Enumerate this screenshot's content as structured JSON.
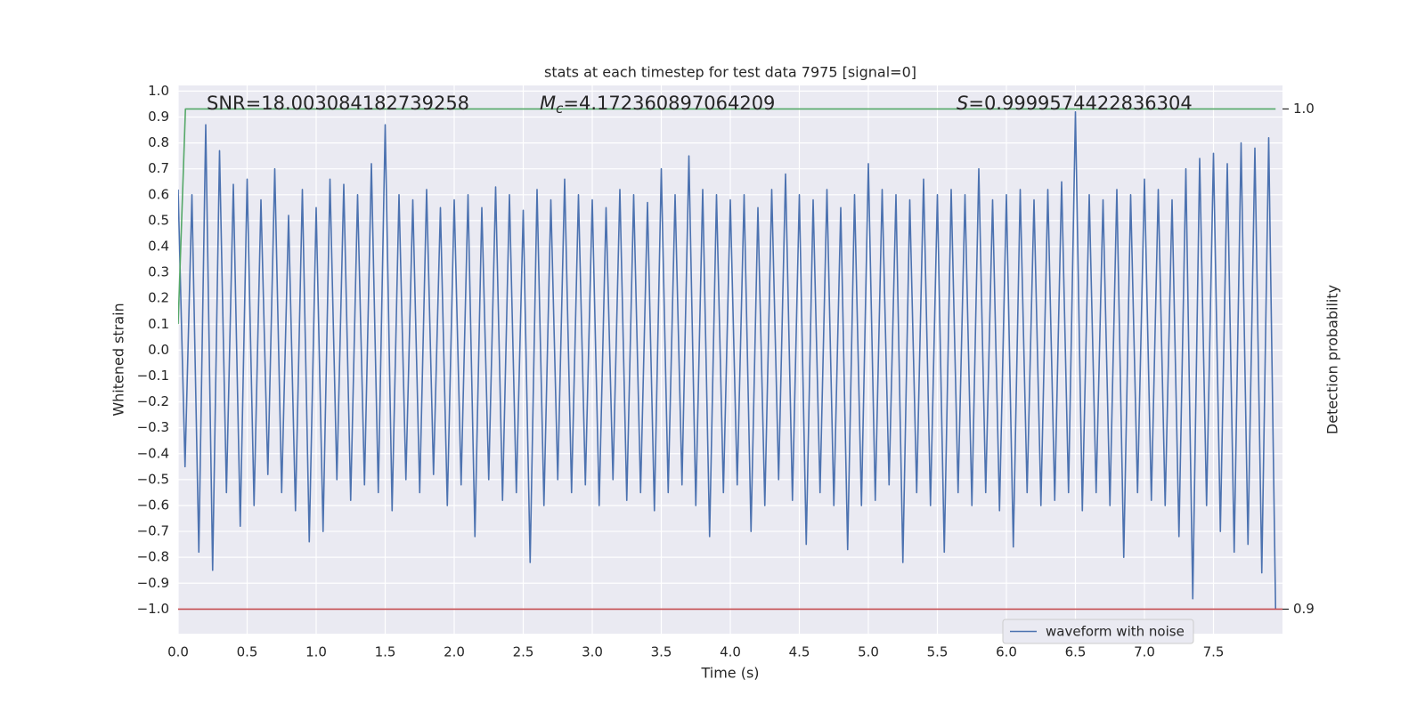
{
  "chart_data": {
    "type": "line",
    "title": "stats at each timestep for test data 7975 [signal=0]",
    "xlabel": "Time (s)",
    "ylabel": "Whitened strain",
    "y2label": "Detection probability",
    "annotations": [
      {
        "text": "SNR=18.003084182739258"
      },
      {
        "symbol": "M",
        "subscript": "c",
        "text": "=4.172360897064209"
      },
      {
        "symbol": "S",
        "text": "=0.9999574422836304"
      }
    ],
    "xlim": [
      0,
      8.0
    ],
    "ylim": [
      -1.095,
      1.022
    ],
    "y2lim": [
      0.8951,
      1.0047
    ],
    "xticks": [
      {
        "value": 0,
        "label": "0.0"
      },
      {
        "value": 0.5,
        "label": "0.5"
      },
      {
        "value": 1,
        "label": "1.0"
      },
      {
        "value": 1.5,
        "label": "1.5"
      },
      {
        "value": 2,
        "label": "2.0"
      },
      {
        "value": 2.5,
        "label": "2.5"
      },
      {
        "value": 3,
        "label": "3.0"
      },
      {
        "value": 3.5,
        "label": "3.5"
      },
      {
        "value": 4,
        "label": "4.0"
      },
      {
        "value": 4.5,
        "label": "4.5"
      },
      {
        "value": 5,
        "label": "5.0"
      },
      {
        "value": 5.5,
        "label": "5.5"
      },
      {
        "value": 6,
        "label": "6.0"
      },
      {
        "value": 6.5,
        "label": "6.5"
      },
      {
        "value": 7,
        "label": "7.0"
      },
      {
        "value": 7.5,
        "label": "7.5"
      }
    ],
    "yticks": [
      {
        "value": -1,
        "label": "−1.0"
      },
      {
        "value": -0.9,
        "label": "−0.9"
      },
      {
        "value": -0.8,
        "label": "−0.8"
      },
      {
        "value": -0.7,
        "label": "−0.7"
      },
      {
        "value": -0.6,
        "label": "−0.6"
      },
      {
        "value": -0.5,
        "label": "−0.5"
      },
      {
        "value": -0.4,
        "label": "−0.4"
      },
      {
        "value": -0.3,
        "label": "−0.3"
      },
      {
        "value": -0.2,
        "label": "−0.2"
      },
      {
        "value": -0.1,
        "label": "−0.1"
      },
      {
        "value": 0,
        "label": "0.0"
      },
      {
        "value": 0.1,
        "label": "0.1"
      },
      {
        "value": 0.2,
        "label": "0.2"
      },
      {
        "value": 0.3,
        "label": "0.3"
      },
      {
        "value": 0.4,
        "label": "0.4"
      },
      {
        "value": 0.5,
        "label": "0.5"
      },
      {
        "value": 0.6,
        "label": "0.6"
      },
      {
        "value": 0.7,
        "label": "0.7"
      },
      {
        "value": 0.8,
        "label": "0.8"
      },
      {
        "value": 0.9,
        "label": "0.9"
      },
      {
        "value": 1,
        "label": "1.0"
      }
    ],
    "y2ticks": [
      {
        "value": 0.9,
        "label": "0.9"
      },
      {
        "value": 1.0,
        "label": "1.0"
      }
    ],
    "grid": true,
    "series": [
      {
        "name": "waveform with noise",
        "color": "#4c72b0",
        "x": [
          0,
          0.05,
          0.1,
          0.15,
          0.2,
          0.25,
          0.3,
          0.35,
          0.4,
          0.45,
          0.5,
          0.55,
          0.6,
          0.65,
          0.7,
          0.75,
          0.8,
          0.85,
          0.9,
          0.95,
          1,
          1.05,
          1.1,
          1.15,
          1.2,
          1.25,
          1.3,
          1.35,
          1.4,
          1.45,
          1.5,
          1.55,
          1.6,
          1.65,
          1.7,
          1.75,
          1.8,
          1.85,
          1.9,
          1.95,
          2,
          2.05,
          2.1,
          2.15,
          2.2,
          2.25,
          2.3,
          2.35,
          2.4,
          2.45,
          2.5,
          2.55,
          2.6,
          2.65,
          2.7,
          2.75,
          2.8,
          2.85,
          2.9,
          2.95,
          3,
          3.05,
          3.1,
          3.15,
          3.2,
          3.25,
          3.3,
          3.35,
          3.4,
          3.45,
          3.5,
          3.55,
          3.6,
          3.65,
          3.7,
          3.75,
          3.8,
          3.85,
          3.9,
          3.95,
          4,
          4.05,
          4.1,
          4.15,
          4.2,
          4.25,
          4.3,
          4.35,
          4.4,
          4.45,
          4.5,
          4.55,
          4.6,
          4.65,
          4.7,
          4.75,
          4.8,
          4.85,
          4.9,
          4.95,
          5,
          5.05,
          5.1,
          5.15,
          5.2,
          5.25,
          5.3,
          5.35,
          5.4,
          5.45,
          5.5,
          5.55,
          5.6,
          5.65,
          5.7,
          5.75,
          5.8,
          5.85,
          5.9,
          5.95,
          6,
          6.05,
          6.1,
          6.15,
          6.2,
          6.25,
          6.3,
          6.35,
          6.4,
          6.45,
          6.5,
          6.55,
          6.6,
          6.65,
          6.7,
          6.75,
          6.8,
          6.85,
          6.9,
          6.95,
          7,
          7.05,
          7.1,
          7.15,
          7.2,
          7.25,
          7.3,
          7.35,
          7.4,
          7.45,
          7.5,
          7.55,
          7.6,
          7.65,
          7.7,
          7.75,
          7.8,
          7.85,
          7.9,
          7.95
        ],
        "values": [
          0.62,
          -0.45,
          0.6,
          -0.78,
          0.87,
          -0.85,
          0.77,
          -0.55,
          0.64,
          -0.68,
          0.66,
          -0.6,
          0.58,
          -0.48,
          0.7,
          -0.55,
          0.52,
          -0.62,
          0.62,
          -0.74,
          0.55,
          -0.7,
          0.66,
          -0.5,
          0.64,
          -0.58,
          0.6,
          -0.52,
          0.72,
          -0.55,
          0.87,
          -0.62,
          0.6,
          -0.5,
          0.58,
          -0.55,
          0.62,
          -0.48,
          0.55,
          -0.6,
          0.58,
          -0.52,
          0.6,
          -0.72,
          0.55,
          -0.5,
          0.63,
          -0.58,
          0.6,
          -0.55,
          0.54,
          -0.82,
          0.62,
          -0.6,
          0.58,
          -0.5,
          0.66,
          -0.55,
          0.6,
          -0.52,
          0.58,
          -0.6,
          0.55,
          -0.5,
          0.62,
          -0.58,
          0.6,
          -0.55,
          0.57,
          -0.62,
          0.7,
          -0.55,
          0.6,
          -0.52,
          0.75,
          -0.6,
          0.62,
          -0.72,
          0.6,
          -0.55,
          0.58,
          -0.52,
          0.6,
          -0.7,
          0.55,
          -0.6,
          0.62,
          -0.5,
          0.68,
          -0.58,
          0.6,
          -0.75,
          0.58,
          -0.55,
          0.62,
          -0.6,
          0.55,
          -0.77,
          0.6,
          -0.6,
          0.72,
          -0.58,
          0.62,
          -0.52,
          0.6,
          -0.82,
          0.58,
          -0.55,
          0.66,
          -0.6,
          0.6,
          -0.78,
          0.62,
          -0.55,
          0.6,
          -0.6,
          0.7,
          -0.55,
          0.58,
          -0.62,
          0.6,
          -0.76,
          0.62,
          -0.55,
          0.58,
          -0.6,
          0.62,
          -0.58,
          0.65,
          -0.55,
          0.92,
          -0.62,
          0.6,
          -0.55,
          0.58,
          -0.6,
          0.62,
          -0.8,
          0.6,
          -0.55,
          0.66,
          -0.58,
          0.62,
          -0.6,
          0.58,
          -0.72,
          0.7,
          -0.96,
          0.74,
          -0.6,
          0.76,
          -0.7,
          0.72,
          -0.78,
          0.8,
          -0.75,
          0.78,
          -0.86,
          0.82,
          -1.0
        ]
      },
      {
        "color": "#55a868",
        "axis": "y2",
        "x": [
          0,
          0.053,
          7.95
        ],
        "values": [
          0.957,
          1.0,
          1.0
        ]
      },
      {
        "color": "#c44e52",
        "axis": "y2",
        "x": [
          0,
          8.0
        ],
        "values": [
          0.9,
          0.9
        ]
      }
    ]
  }
}
